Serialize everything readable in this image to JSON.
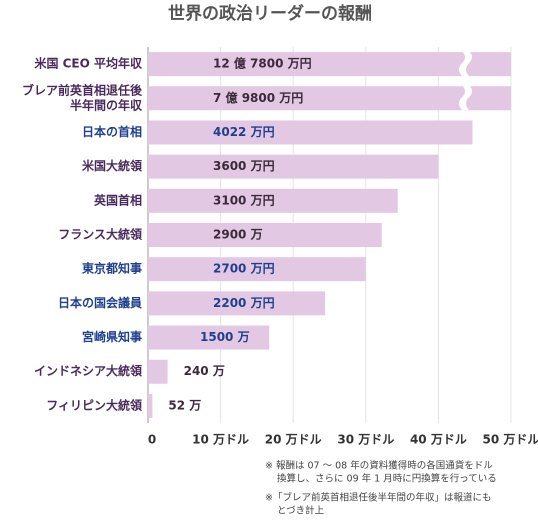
{
  "chart_data": {
    "type": "hbar",
    "title": "世界の政治リーダーの報酬",
    "categories": [
      "米国 CEO 平均年収",
      [
        "ブレア前英首相退任後",
        "半年間の年収"
      ],
      "日本の首相",
      "米国大統領",
      "英国首相",
      "フランス大統領",
      "東京都知事",
      "日本の国会議員",
      "宮崎県知事",
      "インドネシア大統領",
      "フィリピン大統領"
    ],
    "category_colors": [
      "#4a2a5e",
      "#4a2a5e",
      "#1f3f8f",
      "#4a2a5e",
      "#4a2a5e",
      "#4a2a5e",
      "#1f3f8f",
      "#1f3f8f",
      "#1f3f8f",
      "#4a2a5e",
      "#4a2a5e"
    ],
    "values": [
      1420,
      887,
      44.7,
      40,
      34.4,
      32.2,
      30,
      24.4,
      16.7,
      2.7,
      0.6
    ],
    "annotations": [
      "12 億 7800 万円",
      "7 億 9800 万円",
      "4022 万円",
      "3600 万円",
      "3100 万円",
      "2900 万",
      "2700 万円",
      "2200 万円",
      "1500 万",
      "240 万",
      "52 万"
    ],
    "color": "#e3c8e3",
    "xlim": [
      0,
      50
    ],
    "xticks": [
      0,
      {
        "value": 10,
        "label": "10 万ドル"
      },
      {
        "value": 20,
        "label": "20 万ドル"
      },
      {
        "value": 30,
        "label": "30 万ドル"
      },
      {
        "value": 40,
        "label": "40 万ドル"
      },
      {
        "value": 50,
        "label": "50 万ドル"
      }
    ],
    "axis_break": true,
    "grid": true,
    "notes": [
      [
        "※ 報酬は 07 〜 08 年の資料獲得時の各国通貨をドル",
        "換算し、さらに 09 年 1 月時に円換算を行っている"
      ],
      [
        "※「ブレア前英首相退任後半年間の年収」は報道にも",
        "とづき計上"
      ]
    ]
  }
}
